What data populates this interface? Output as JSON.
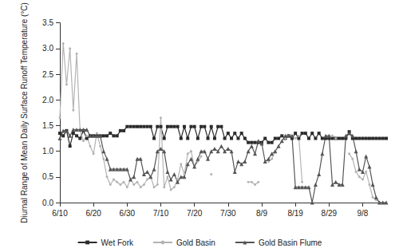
{
  "chart_data": {
    "type": "line",
    "y_label": "Diurnal Range of Mean Daily Surface Runoff Temperature (°C)",
    "categories": [
      "6/10",
      null,
      null,
      null,
      null,
      null,
      null,
      null,
      null,
      null,
      "6/20",
      null,
      null,
      null,
      null,
      null,
      null,
      null,
      null,
      null,
      "6/30",
      null,
      null,
      null,
      null,
      null,
      null,
      null,
      null,
      null,
      "7/10",
      null,
      null,
      null,
      null,
      null,
      null,
      null,
      null,
      null,
      "7/20",
      null,
      null,
      null,
      null,
      null,
      null,
      null,
      null,
      null,
      "7/30",
      null,
      null,
      null,
      null,
      null,
      null,
      null,
      null,
      null,
      "8/9",
      null,
      null,
      null,
      null,
      null,
      null,
      null,
      null,
      null,
      "8/19",
      null,
      null,
      null,
      null,
      null,
      null,
      null,
      null,
      null,
      "8/29",
      null,
      null,
      null,
      null,
      null,
      null,
      null,
      null,
      null,
      "9/8",
      null,
      null,
      null,
      null,
      null,
      null,
      null
    ],
    "series": [
      {
        "name": "Wet Fork",
        "color": "#2b2b2b",
        "marker": "square",
        "line_style": "solid",
        "values": [
          1.35,
          1.3,
          1.4,
          1.1,
          1.35,
          1.3,
          1.25,
          1.4,
          1.25,
          1.3,
          1.3,
          1.3,
          1.3,
          1.3,
          1.3,
          1.35,
          1.3,
          1.3,
          1.4,
          1.4,
          1.48,
          1.48,
          1.48,
          1.48,
          1.48,
          1.48,
          1.48,
          1.48,
          1.25,
          1.48,
          1.48,
          1.25,
          1.48,
          1.48,
          1.48,
          1.48,
          1.25,
          1.48,
          1.25,
          1.48,
          1.48,
          1.25,
          1.48,
          1.48,
          1.25,
          1.48,
          1.25,
          1.48,
          1.48,
          1.25,
          1.35,
          1.25,
          1.35,
          1.25,
          1.35,
          1.25,
          1.17,
          1.17,
          1.17,
          1.17,
          1.17,
          1.25,
          1.17,
          1.17,
          1.25,
          1.25,
          1.3,
          1.25,
          1.3,
          1.25,
          1.35,
          1.25,
          1.35,
          1.35,
          1.25,
          1.35,
          1.25,
          1.35,
          1.25,
          1.25,
          1.25,
          1.25,
          1.25,
          1.25,
          1.25,
          1.25,
          1.38,
          1.25,
          1.25,
          1.25,
          1.25,
          1.25,
          1.25,
          1.25,
          1.25,
          1.25,
          1.25,
          1.25
        ]
      },
      {
        "name": "Gold Basin",
        "color": "#b3b3b3",
        "marker": "circle",
        "line_style": "solid",
        "values": [
          1.65,
          3.1,
          2.3,
          3.0,
          1.8,
          2.9,
          1.4,
          1.2,
          1.3,
          1.1,
          0.95,
          1.35,
          1.1,
          0.85,
          0.5,
          0.35,
          0.45,
          0.4,
          0.35,
          0.4,
          0.3,
          0.45,
          0.35,
          0.4,
          0.3,
          0.35,
          0.45,
          0.5,
          0.3,
          0.35,
          1.65,
          0.3,
          0.5,
          0.25,
          0.3,
          0.45,
          0.75,
          0.55,
          0.95,
          1.0,
          0.7,
          0.8,
          0.9,
          null,
          null,
          0.55,
          null,
          null,
          null,
          null,
          null,
          null,
          null,
          null,
          null,
          null,
          0.4,
          0.4,
          0.35,
          0.4,
          null,
          null,
          0.8,
          0.85,
          1.0,
          null,
          null,
          1.25,
          1.3,
          1.3,
          1.25,
          1.3,
          0.4,
          null,
          null,
          null,
          null,
          null,
          null,
          null,
          1.3,
          1.3,
          1.25,
          null,
          null,
          null,
          0.95,
          0.85,
          0.6,
          0.5,
          0.45,
          0.6,
          0.35,
          0.1,
          0.05,
          0.0,
          0.0,
          null
        ]
      },
      {
        "name": "Gold Basin Flume",
        "color": "#555555",
        "marker": "triangle",
        "line_style": "solid",
        "values": [
          1.25,
          1.4,
          1.4,
          1.3,
          1.42,
          1.42,
          1.42,
          1.42,
          1.42,
          1.3,
          1.3,
          1.3,
          1.3,
          1.0,
          0.85,
          0.65,
          0.65,
          0.65,
          0.65,
          0.65,
          0.65,
          0.45,
          0.5,
          0.85,
          0.85,
          0.55,
          0.6,
          0.5,
          0.65,
          1.0,
          1.05,
          1.0,
          0.6,
          0.45,
          0.55,
          0.4,
          0.5,
          0.5,
          0.75,
          0.85,
          0.7,
          0.85,
          1.0,
          1.0,
          0.85,
          1.0,
          1.05,
          1.0,
          1.1,
          1.0,
          1.05,
          1.0,
          0.6,
          0.8,
          0.75,
          0.8,
          1.0,
          1.1,
          0.95,
          1.2,
          1.15,
          0.8,
          0.85,
          0.95,
          1.0,
          1.1,
          1.2,
          1.3,
          1.3,
          1.3,
          0.3,
          0.3,
          0.3,
          0.3,
          0.3,
          0.0,
          0.35,
          0.55,
          0.95,
          1.3,
          1.3,
          0.35,
          0.4,
          0.35,
          0.35,
          1.3,
          1.35,
          1.3,
          1.0,
          0.65,
          0.6,
          0.9,
          0.7,
          0.35,
          0.1,
          0.0,
          0.0,
          0.0
        ]
      }
    ],
    "ylim": [
      0,
      3.5
    ],
    "yticks": [
      {
        "value": 0,
        "label": "0.0"
      },
      0.5,
      {
        "value": 1,
        "label": "1.0"
      },
      1.5,
      {
        "value": 2,
        "label": "2.0"
      },
      2.5,
      {
        "value": 3,
        "label": "3.0"
      },
      3.5
    ],
    "grid": false,
    "legend": "bottom"
  }
}
